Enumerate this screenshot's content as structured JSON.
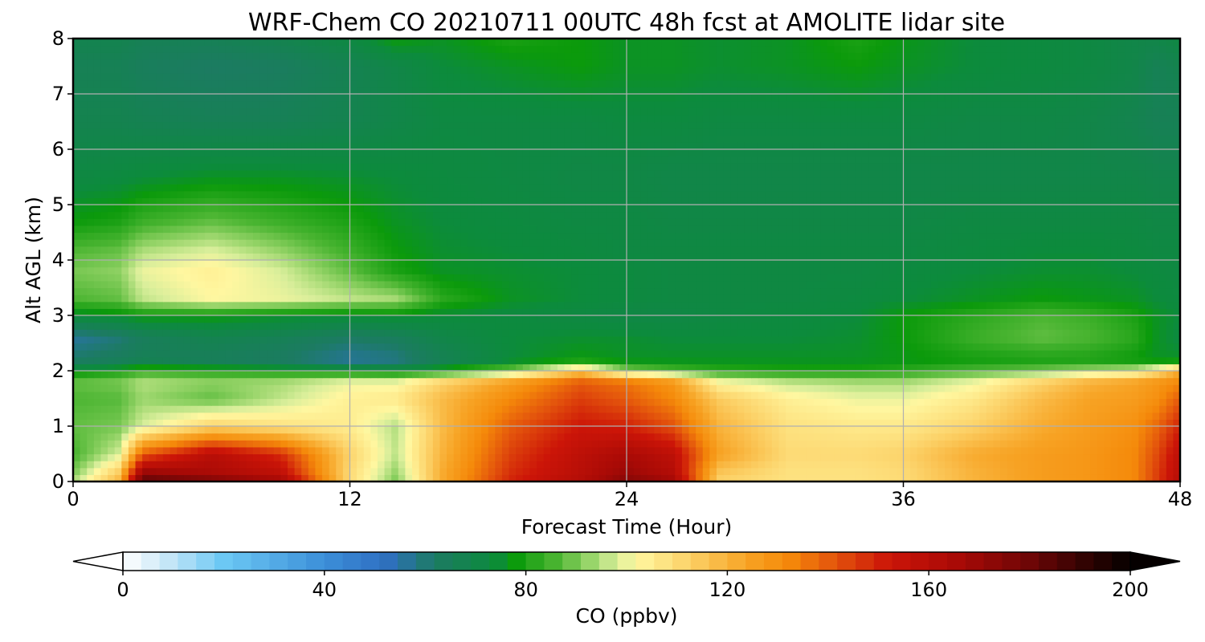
{
  "chart_data": {
    "type": "heatmap",
    "title": "WRF-Chem CO  20210711 00UTC 48h fcst at AMOLITE lidar site",
    "xlabel": "Forecast Time (Hour)",
    "ylabel": "Alt AGL (km)",
    "xlim": [
      0,
      48
    ],
    "ylim": [
      0,
      8
    ],
    "x_ticks": [
      "0",
      "12",
      "24",
      "36",
      "48"
    ],
    "y_ticks": [
      "0",
      "1",
      "2",
      "3",
      "4",
      "5",
      "6",
      "7",
      "8"
    ],
    "grid": true,
    "x": [
      0,
      2,
      3,
      6,
      9,
      12,
      14,
      16,
      19,
      22,
      24,
      26,
      28,
      31,
      34,
      36,
      39,
      42,
      44,
      46,
      47,
      48
    ],
    "y": [
      0,
      0.15,
      0.5,
      1,
      1.5,
      1.8,
      2,
      2.2,
      2.6,
      3,
      3.3,
      3.8,
      4.2,
      4.7,
      5.5,
      6.5,
      7.5,
      8
    ],
    "z": [
      [
        95,
        120,
        185,
        178,
        168,
        110,
        90,
        122,
        150,
        162,
        175,
        168,
        112,
        108,
        108,
        110,
        120,
        126,
        128,
        132,
        145,
        162
      ],
      [
        90,
        115,
        172,
        165,
        158,
        110,
        92,
        122,
        148,
        160,
        170,
        162,
        115,
        108,
        108,
        110,
        120,
        126,
        128,
        132,
        145,
        160
      ],
      [
        85,
        98,
        140,
        160,
        148,
        112,
        96,
        120,
        145,
        158,
        165,
        158,
        125,
        110,
        110,
        112,
        122,
        126,
        128,
        132,
        143,
        158
      ],
      [
        88,
        90,
        98,
        112,
        108,
        105,
        95,
        118,
        140,
        152,
        150,
        142,
        120,
        108,
        106,
        106,
        112,
        122,
        126,
        130,
        138,
        150
      ],
      [
        86,
        87,
        93,
        88,
        96,
        104,
        106,
        118,
        132,
        145,
        140,
        132,
        114,
        104,
        100,
        100,
        106,
        118,
        124,
        126,
        130,
        140
      ],
      [
        88,
        90,
        95,
        92,
        94,
        100,
        100,
        112,
        126,
        140,
        136,
        128,
        102,
        96,
        94,
        94,
        100,
        112,
        120,
        124,
        128,
        132
      ],
      [
        76,
        80,
        84,
        82,
        80,
        78,
        76,
        80,
        90,
        115,
        92,
        86,
        82,
        80,
        80,
        82,
        86,
        90,
        94,
        98,
        108,
        122
      ],
      [
        62,
        64,
        66,
        64,
        62,
        56,
        58,
        66,
        74,
        78,
        76,
        76,
        76,
        76,
        76,
        77,
        79,
        80,
        80,
        78,
        76,
        76
      ],
      [
        56,
        60,
        64,
        68,
        66,
        62,
        64,
        70,
        74,
        75,
        75,
        74,
        74,
        74,
        75,
        78,
        84,
        88,
        86,
        82,
        76,
        73
      ],
      [
        74,
        76,
        78,
        78,
        76,
        75,
        76,
        74,
        73,
        72,
        71,
        71,
        72,
        73,
        74,
        78,
        82,
        86,
        84,
        80,
        76,
        74
      ],
      [
        86,
        88,
        96,
        102,
        100,
        96,
        94,
        82,
        76,
        74,
        73,
        72,
        72,
        72,
        73,
        74,
        76,
        78,
        77,
        76,
        74,
        73
      ],
      [
        90,
        92,
        100,
        104,
        98,
        88,
        80,
        76,
        75,
        74,
        73,
        72,
        72,
        72,
        72,
        73,
        74,
        75,
        75,
        74,
        73,
        72
      ],
      [
        86,
        88,
        94,
        98,
        92,
        84,
        78,
        75,
        74,
        73,
        72,
        72,
        72,
        72,
        72,
        72,
        73,
        74,
        74,
        73,
        72,
        72
      ],
      [
        78,
        80,
        84,
        88,
        84,
        80,
        76,
        74,
        73,
        72,
        72,
        71,
        71,
        71,
        71,
        71,
        72,
        72,
        72,
        72,
        71,
        71
      ],
      [
        72,
        73,
        74,
        76,
        76,
        75,
        74,
        73,
        72,
        71,
        71,
        70,
        70,
        70,
        70,
        70,
        70,
        70,
        70,
        70,
        69,
        69
      ],
      [
        68,
        68,
        67,
        66,
        66,
        68,
        70,
        72,
        72,
        72,
        73,
        73,
        72,
        72,
        72,
        72,
        71,
        71,
        70,
        68,
        66,
        66
      ],
      [
        66,
        66,
        64,
        62,
        63,
        67,
        70,
        74,
        76,
        78,
        76,
        76,
        75,
        76,
        78,
        76,
        74,
        73,
        72,
        70,
        66,
        68
      ],
      [
        68,
        68,
        66,
        66,
        68,
        72,
        78,
        76,
        80,
        78,
        76,
        76,
        75,
        76,
        80,
        77,
        74,
        73,
        72,
        70,
        70,
        72
      ]
    ],
    "colorbar": {
      "label": "CO  (ppbv)",
      "min": 0,
      "max": 200,
      "ticks": [
        "0",
        "40",
        "80",
        "120",
        "160",
        "200"
      ],
      "extend": "both",
      "stops": [
        [
          0,
          "#ffffff"
        ],
        [
          8,
          "#cde9f7"
        ],
        [
          20,
          "#6cc8f4"
        ],
        [
          40,
          "#3c8fd8"
        ],
        [
          52,
          "#2f6fc3"
        ],
        [
          62,
          "#1c7b62"
        ],
        [
          74,
          "#0c8b3c"
        ],
        [
          78,
          "#0b9a0b"
        ],
        [
          86,
          "#4bb532"
        ],
        [
          92,
          "#8fd163"
        ],
        [
          98,
          "#d8ee9a"
        ],
        [
          102,
          "#fff7a0"
        ],
        [
          112,
          "#fcd36a"
        ],
        [
          124,
          "#f7a324"
        ],
        [
          132,
          "#f58a0a"
        ],
        [
          142,
          "#e2500c"
        ],
        [
          152,
          "#cc1508"
        ],
        [
          166,
          "#a80a06"
        ],
        [
          180,
          "#6e0606"
        ],
        [
          192,
          "#2c0302"
        ],
        [
          200,
          "#050000"
        ]
      ]
    }
  }
}
